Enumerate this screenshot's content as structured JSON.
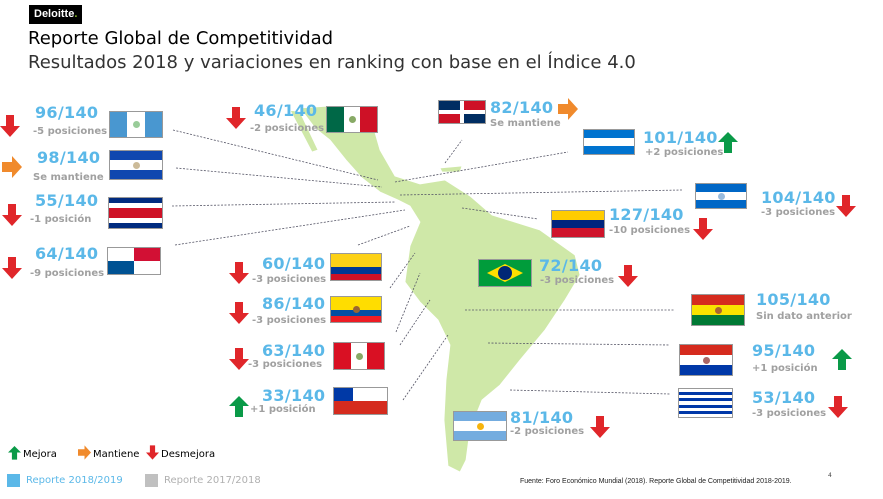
{
  "brand": {
    "logo": "Deloitte",
    "logo_dot": "."
  },
  "header": {
    "title": "Reporte Global de Competitividad",
    "subtitle": "Resultados 2018 y variaciones en ranking con base en el Índice 4.0"
  },
  "colors": {
    "rank": "#5bb8e8",
    "improve": "#0a9a48",
    "same": "#f08a2c",
    "worse": "#e0262a",
    "map": "#cfe8a8",
    "report_current": "#5bb8e8",
    "report_previous": "#c0c0c0"
  },
  "countries": [
    {
      "country": "Guatemala",
      "rank": "96/140",
      "change": "-5 posiciones",
      "trend": "down"
    },
    {
      "country": "El Salvador",
      "rank": "98/140",
      "change": "Se mantiene",
      "trend": "same"
    },
    {
      "country": "Costa Rica",
      "rank": "55/140",
      "change": "-1 posición",
      "trend": "down"
    },
    {
      "country": "Panamá",
      "rank": "64/140",
      "change": "-9 posiciones",
      "trend": "down"
    },
    {
      "country": "México",
      "rank": "46/140",
      "change": "-2 posiciones",
      "trend": "down"
    },
    {
      "country": "República Dominicana",
      "rank": "82/140",
      "change": "Se mantiene",
      "trend": "same"
    },
    {
      "country": "Honduras",
      "rank": "101/140",
      "change": "+2 posiciones",
      "trend": "up"
    },
    {
      "country": "Nicaragua",
      "rank": "104/140",
      "change": "-3 posiciones",
      "trend": "down"
    },
    {
      "country": "Venezuela",
      "rank": "127/140",
      "change": "-10 posiciones",
      "trend": "down"
    },
    {
      "country": "Brasil",
      "rank": "72/140",
      "change": "-3 posiciones",
      "trend": "down"
    },
    {
      "country": "Bolivia",
      "rank": "105/140",
      "change": "Sin dato anterior",
      "trend": "none"
    },
    {
      "country": "Colombia",
      "rank": "60/140",
      "change": "-3 posiciones",
      "trend": "down"
    },
    {
      "country": "Ecuador",
      "rank": "86/140",
      "change": "-3 posiciones",
      "trend": "down"
    },
    {
      "country": "Perú",
      "rank": "63/140",
      "change": "-3 posiciones",
      "trend": "down"
    },
    {
      "country": "Chile",
      "rank": "33/140",
      "change": "+1 posición",
      "trend": "up"
    },
    {
      "country": "Paraguay",
      "rank": "95/140",
      "change": "+1 posición",
      "trend": "up"
    },
    {
      "country": "Uruguay",
      "rank": "53/140",
      "change": "-3 posiciones",
      "trend": "down"
    },
    {
      "country": "Argentina",
      "rank": "81/140",
      "change": "-2 posiciones",
      "trend": "down"
    }
  ],
  "legend": {
    "improve": "Mejora",
    "same": "Mantiene",
    "worse": "Desmejora"
  },
  "reports": {
    "current": "Reporte 2018/2019",
    "previous": "Reporte 2017/2018"
  },
  "footer": {
    "source": "Fuente: Foro Económico Mundial (2018). Reporte Global de Competitividad 2018-2019.",
    "page": "4"
  }
}
